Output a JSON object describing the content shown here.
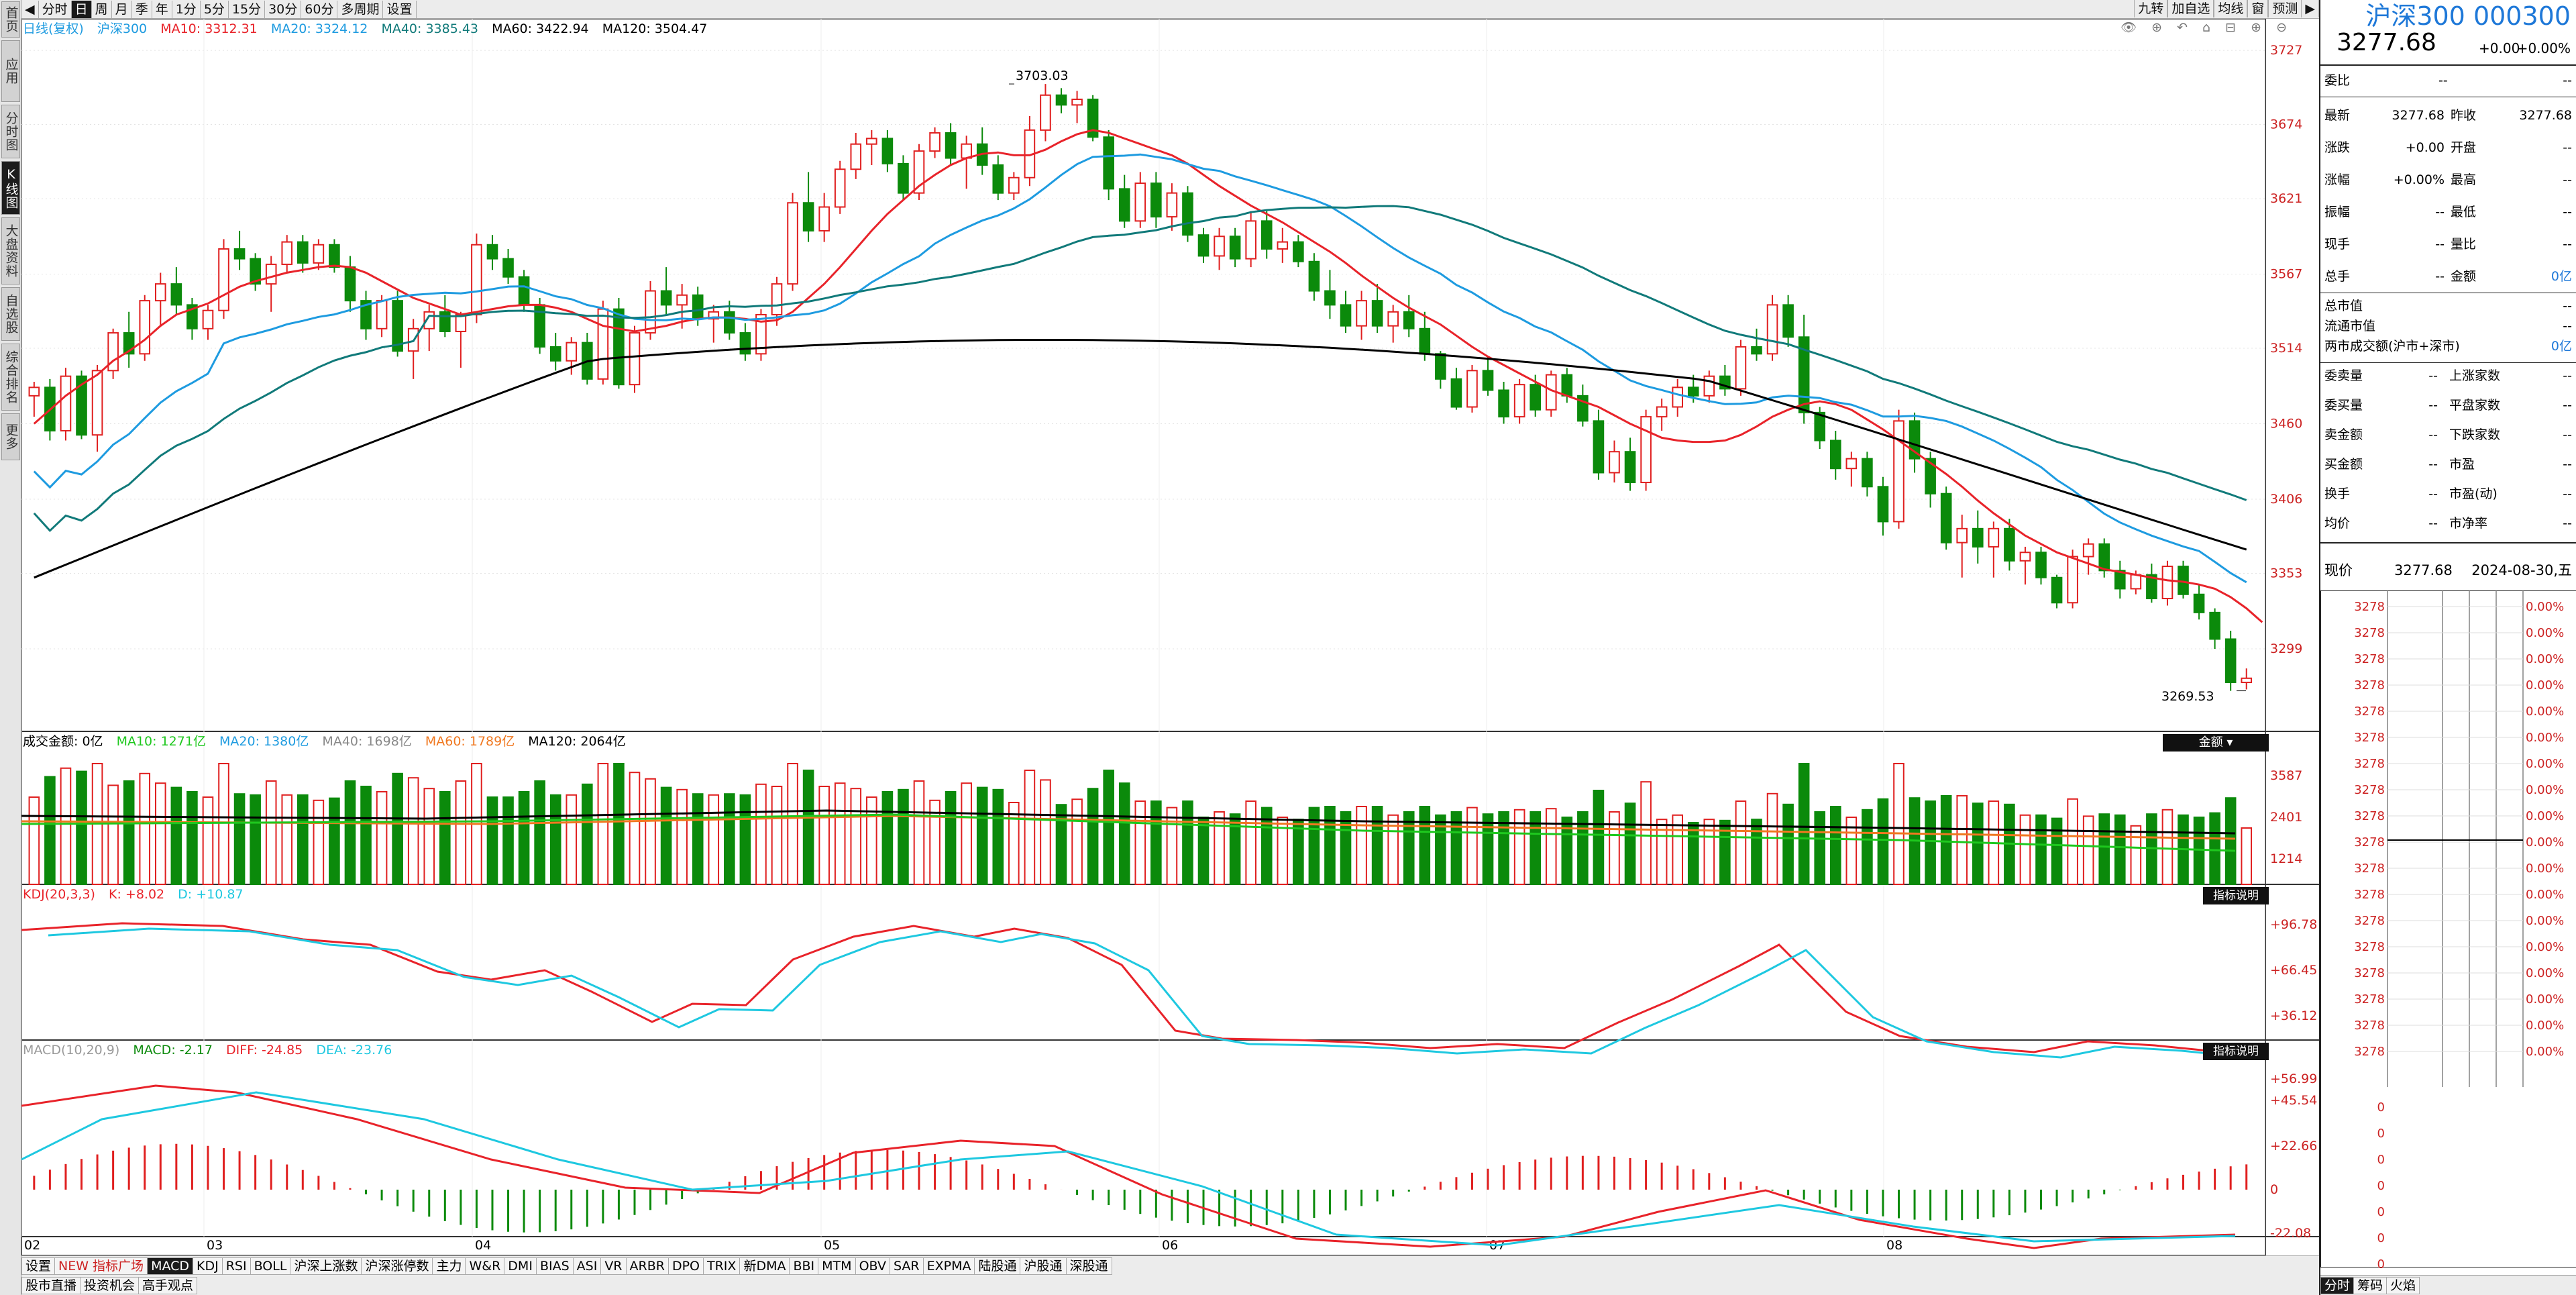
{
  "left_rail": [
    {
      "label": "首页",
      "active": false
    },
    {
      "label": "应用",
      "active": false
    },
    {
      "label": "分时图",
      "active": false
    },
    {
      "label": "K线图",
      "active": true
    },
    {
      "label": "大盘资料",
      "active": false
    },
    {
      "label": "自选股",
      "active": false
    },
    {
      "label": "综合排名",
      "active": false
    },
    {
      "label": "更多",
      "active": false
    }
  ],
  "toolbar": {
    "items": [
      "分时",
      "日",
      "周",
      "月",
      "季",
      "年",
      "1分",
      "5分",
      "15分",
      "30分",
      "60分",
      "多周期",
      "设置"
    ],
    "active": "日",
    "right_items": [
      "九转",
      "加自选",
      "均线",
      "窗",
      "预测"
    ]
  },
  "main_legend": {
    "label": "日线(复权)",
    "name": "沪深300",
    "ma10": "MA10: 3312.31",
    "ma20": "MA20: 3324.12",
    "ma40": "MA40: 3385.43",
    "ma60": "MA60: 3422.94",
    "ma120": "MA120: 3504.47"
  },
  "price_axis": [
    "3727",
    "3674",
    "3621",
    "3567",
    "3514",
    "3460",
    "3406",
    "3353",
    "3299"
  ],
  "annotations": {
    "high": "3703.03",
    "low": "3269.53"
  },
  "volume_legend": {
    "label": "成交金额: 0亿",
    "ma10": "MA10: 1271亿",
    "ma20": "MA20: 1380亿",
    "ma40": "MA40: 1698亿",
    "ma60": "MA60: 1789亿",
    "ma120": "MA120: 2064亿",
    "button": "金额"
  },
  "volume_axis": [
    "3587",
    "2401",
    "1214"
  ],
  "kdj_legend": {
    "label": "KDJ(20,3,3)",
    "k": "K: +8.02",
    "d": "D: +10.87",
    "button": "指标说明"
  },
  "kdj_axis": [
    "+96.78",
    "+66.45",
    "+36.12"
  ],
  "macd_legend": {
    "label": "MACD(10,20,9)",
    "macd": "MACD: -2.17",
    "diff": "DIFF: -24.85",
    "dea": "DEA: -23.76",
    "button": "指标说明"
  },
  "macd_axis": [
    "+56.99",
    "+45.54",
    "+22.66",
    "0",
    "-22.08"
  ],
  "date_axis": [
    "02",
    "03",
    "04",
    "05",
    "06",
    "07",
    "08"
  ],
  "bottom_tabs": [
    "设置",
    "NEW 指标广场",
    "MACD",
    "KDJ",
    "RSI",
    "BOLL",
    "沪深上涨数",
    "沪深涨停数",
    "主力",
    "W&R",
    "DMI",
    "BIAS",
    "ASI",
    "VR",
    "ARBR",
    "DPO",
    "TRIX",
    "新DMA",
    "BBI",
    "MTM",
    "OBV",
    "SAR",
    "EXPMA",
    "陆股通",
    "沪股通",
    "深股通"
  ],
  "bottom_tabs_active": "MACD",
  "bottom_tabs2": [
    "股市直播",
    "投资机会",
    "高手观点"
  ],
  "right_panel": {
    "title": "沪深300 000300",
    "price": "3277.68",
    "change": "+0.00",
    "change_pct": "+0.00%",
    "weibi_label": "委比",
    "weibi_val": "--",
    "weibi_val2": "--",
    "stats": [
      {
        "l1": "最新",
        "v1": "3277.68",
        "l2": "昨收",
        "v2": "3277.68"
      },
      {
        "l1": "涨跌",
        "v1": "+0.00",
        "l2": "开盘",
        "v2": "--"
      },
      {
        "l1": "涨幅",
        "v1": "+0.00%",
        "l2": "最高",
        "v2": "--"
      },
      {
        "l1": "振幅",
        "v1": "--",
        "l2": "最低",
        "v2": "--"
      },
      {
        "l1": "现手",
        "v1": "--",
        "l2": "量比",
        "v2": "--"
      },
      {
        "l1": "总手",
        "v1": "--",
        "l2": "金额",
        "v2": "0亿"
      }
    ],
    "caps": [
      {
        "l": "总市值",
        "v": "--"
      },
      {
        "l": "流通市值",
        "v": "--"
      },
      {
        "l": "两市成交额(沪市+深市)",
        "v": "0亿"
      }
    ],
    "orders": [
      {
        "l1": "委卖量",
        "v1": "--",
        "l2": "上涨家数",
        "v2": "--"
      },
      {
        "l1": "委买量",
        "v1": "--",
        "l2": "平盘家数",
        "v2": "--"
      },
      {
        "l1": "卖金额",
        "v1": "--",
        "l2": "下跌家数",
        "v2": "--"
      },
      {
        "l1": "买金额",
        "v1": "--",
        "l2": "市盈",
        "v2": "--"
      },
      {
        "l1": "换手",
        "v1": "--",
        "l2": "市盈(动)",
        "v2": "--"
      },
      {
        "l1": "均价",
        "v1": "--",
        "l2": "市净率",
        "v2": "--"
      }
    ],
    "now_label": "现价",
    "now_price": "3277.68",
    "now_date": "2024-08-30,五",
    "mini_prices": [
      "3278",
      "3278",
      "3278",
      "3278",
      "3278",
      "3278",
      "3278",
      "3278",
      "3278",
      "3278",
      "3278",
      "3278",
      "3278",
      "3278",
      "3278",
      "3278",
      "3278",
      "3278"
    ],
    "mini_pcts": [
      "0.00%",
      "0.00%",
      "0.00%",
      "0.00%",
      "0.00%",
      "0.00%",
      "0.00%",
      "0.00%",
      "0.00%",
      "0.00%",
      "0.00%",
      "0.00%",
      "0.00%",
      "0.00%",
      "0.00%",
      "0.00%",
      "0.00%",
      "0.00%"
    ],
    "mini_lower": [
      "0",
      "0",
      "0",
      "0",
      "0",
      "0",
      "0",
      "0"
    ],
    "bottom_tabs": [
      "分时",
      "筹码",
      "火焰"
    ]
  },
  "colors": {
    "up": "#e01f1f",
    "down": "#0b8a0b",
    "ma10": "#e8232a",
    "ma20": "#1e9be0",
    "ma40": "#117a7a",
    "ma120": "#000000",
    "vol_ma60": "#f07820",
    "k": "#e8232a",
    "d": "#1ec8e0"
  },
  "chart_data": {
    "type": "candlestick",
    "date_labels": [
      "02",
      "03",
      "04",
      "05",
      "06",
      "07",
      "08"
    ],
    "y_range": [
      3240,
      3740
    ],
    "candles": [
      [
        3480,
        3490,
        3465,
        3486
      ],
      [
        3486,
        3492,
        3448,
        3455
      ],
      [
        3455,
        3500,
        3448,
        3494
      ],
      [
        3494,
        3498,
        3449,
        3452
      ],
      [
        3452,
        3502,
        3440,
        3498
      ],
      [
        3498,
        3528,
        3492,
        3525
      ],
      [
        3525,
        3540,
        3500,
        3510
      ],
      [
        3510,
        3552,
        3505,
        3548
      ],
      [
        3548,
        3568,
        3530,
        3560
      ],
      [
        3560,
        3572,
        3538,
        3545
      ],
      [
        3545,
        3550,
        3520,
        3528
      ],
      [
        3528,
        3545,
        3520,
        3541
      ],
      [
        3541,
        3592,
        3535,
        3585
      ],
      [
        3585,
        3598,
        3570,
        3578
      ],
      [
        3578,
        3582,
        3555,
        3560
      ],
      [
        3560,
        3580,
        3540,
        3574
      ],
      [
        3574,
        3595,
        3568,
        3590
      ],
      [
        3590,
        3595,
        3568,
        3575
      ],
      [
        3575,
        3592,
        3570,
        3588
      ],
      [
        3588,
        3592,
        3568,
        3572
      ],
      [
        3572,
        3580,
        3540,
        3548
      ],
      [
        3548,
        3555,
        3520,
        3528
      ],
      [
        3528,
        3552,
        3522,
        3548
      ],
      [
        3548,
        3555,
        3508,
        3512
      ],
      [
        3512,
        3535,
        3492,
        3528
      ],
      [
        3528,
        3545,
        3512,
        3540
      ],
      [
        3540,
        3552,
        3522,
        3526
      ],
      [
        3526,
        3540,
        3500,
        3538
      ],
      [
        3538,
        3596,
        3532,
        3588
      ],
      [
        3588,
        3595,
        3570,
        3578
      ],
      [
        3578,
        3585,
        3560,
        3565
      ],
      [
        3565,
        3570,
        3540,
        3545
      ],
      [
        3545,
        3550,
        3510,
        3515
      ],
      [
        3515,
        3525,
        3498,
        3505
      ],
      [
        3505,
        3522,
        3495,
        3518
      ],
      [
        3518,
        3525,
        3488,
        3492
      ],
      [
        3492,
        3548,
        3488,
        3542
      ],
      [
        3542,
        3550,
        3485,
        3488
      ],
      [
        3488,
        3530,
        3482,
        3525
      ],
      [
        3525,
        3562,
        3520,
        3555
      ],
      [
        3555,
        3572,
        3538,
        3545
      ],
      [
        3545,
        3560,
        3528,
        3552
      ],
      [
        3552,
        3558,
        3530,
        3535
      ],
      [
        3535,
        3545,
        3518,
        3540
      ],
      [
        3540,
        3548,
        3520,
        3525
      ],
      [
        3525,
        3532,
        3505,
        3510
      ],
      [
        3510,
        3542,
        3505,
        3538
      ],
      [
        3538,
        3565,
        3530,
        3560
      ],
      [
        3560,
        3625,
        3555,
        3618
      ],
      [
        3618,
        3640,
        3590,
        3598
      ],
      [
        3598,
        3625,
        3590,
        3615
      ],
      [
        3615,
        3648,
        3610,
        3642
      ],
      [
        3642,
        3668,
        3635,
        3660
      ],
      [
        3660,
        3670,
        3645,
        3664
      ],
      [
        3664,
        3670,
        3640,
        3646
      ],
      [
        3646,
        3652,
        3620,
        3625
      ],
      [
        3625,
        3660,
        3620,
        3655
      ],
      [
        3655,
        3672,
        3650,
        3668
      ],
      [
        3668,
        3675,
        3645,
        3650
      ],
      [
        3650,
        3666,
        3628,
        3660
      ],
      [
        3660,
        3672,
        3638,
        3645
      ],
      [
        3645,
        3652,
        3620,
        3625
      ],
      [
        3625,
        3640,
        3620,
        3636
      ],
      [
        3636,
        3680,
        3630,
        3670
      ],
      [
        3670,
        3703,
        3662,
        3695
      ],
      [
        3695,
        3700,
        3682,
        3688
      ],
      [
        3688,
        3698,
        3675,
        3692
      ],
      [
        3692,
        3695,
        3662,
        3665
      ],
      [
        3665,
        3670,
        3620,
        3628
      ],
      [
        3628,
        3638,
        3600,
        3605
      ],
      [
        3605,
        3640,
        3600,
        3632
      ],
      [
        3632,
        3640,
        3600,
        3608
      ],
      [
        3608,
        3632,
        3598,
        3625
      ],
      [
        3625,
        3630,
        3590,
        3595
      ],
      [
        3595,
        3600,
        3575,
        3580
      ],
      [
        3580,
        3600,
        3570,
        3594
      ],
      [
        3594,
        3600,
        3572,
        3578
      ],
      [
        3578,
        3612,
        3572,
        3605
      ],
      [
        3605,
        3612,
        3578,
        3585
      ],
      [
        3585,
        3600,
        3575,
        3590
      ],
      [
        3590,
        3595,
        3572,
        3576
      ],
      [
        3576,
        3582,
        3548,
        3555
      ],
      [
        3555,
        3570,
        3535,
        3545
      ],
      [
        3545,
        3555,
        3525,
        3530
      ],
      [
        3530,
        3555,
        3520,
        3548
      ],
      [
        3548,
        3560,
        3525,
        3530
      ],
      [
        3530,
        3545,
        3518,
        3540
      ],
      [
        3540,
        3552,
        3522,
        3528
      ],
      [
        3528,
        3540,
        3505,
        3510
      ],
      [
        3510,
        3512,
        3485,
        3492
      ],
      [
        3492,
        3500,
        3470,
        3472
      ],
      [
        3472,
        3502,
        3468,
        3498
      ],
      [
        3498,
        3508,
        3480,
        3484
      ],
      [
        3484,
        3490,
        3460,
        3465
      ],
      [
        3465,
        3492,
        3460,
        3488
      ],
      [
        3488,
        3495,
        3465,
        3470
      ],
      [
        3470,
        3498,
        3465,
        3495
      ],
      [
        3495,
        3500,
        3475,
        3480
      ],
      [
        3480,
        3488,
        3458,
        3462
      ],
      [
        3462,
        3470,
        3420,
        3425
      ],
      [
        3425,
        3448,
        3418,
        3440
      ],
      [
        3440,
        3450,
        3412,
        3418
      ],
      [
        3418,
        3470,
        3412,
        3465
      ],
      [
        3465,
        3478,
        3455,
        3472
      ],
      [
        3472,
        3492,
        3465,
        3486
      ],
      [
        3486,
        3495,
        3475,
        3480
      ],
      [
        3480,
        3498,
        3475,
        3494
      ],
      [
        3494,
        3502,
        3480,
        3485
      ],
      [
        3485,
        3520,
        3480,
        3515
      ],
      [
        3515,
        3528,
        3505,
        3510
      ],
      [
        3510,
        3552,
        3505,
        3545
      ],
      [
        3545,
        3552,
        3515,
        3522
      ],
      [
        3522,
        3538,
        3460,
        3468
      ],
      [
        3468,
        3472,
        3442,
        3448
      ],
      [
        3448,
        3455,
        3420,
        3428
      ],
      [
        3428,
        3440,
        3415,
        3435
      ],
      [
        3435,
        3440,
        3408,
        3415
      ],
      [
        3415,
        3422,
        3380,
        3390
      ],
      [
        3390,
        3470,
        3385,
        3462
      ],
      [
        3462,
        3468,
        3425,
        3435
      ],
      [
        3435,
        3440,
        3400,
        3410
      ],
      [
        3410,
        3415,
        3370,
        3375
      ],
      [
        3375,
        3395,
        3350,
        3385
      ],
      [
        3385,
        3398,
        3360,
        3372
      ],
      [
        3372,
        3390,
        3350,
        3385
      ],
      [
        3385,
        3392,
        3355,
        3362
      ],
      [
        3362,
        3372,
        3345,
        3368
      ],
      [
        3368,
        3372,
        3345,
        3350
      ],
      [
        3350,
        3352,
        3328,
        3332
      ],
      [
        3332,
        3370,
        3328,
        3365
      ],
      [
        3365,
        3378,
        3352,
        3374
      ],
      [
        3374,
        3378,
        3350,
        3355
      ],
      [
        3355,
        3362,
        3335,
        3342
      ],
      [
        3342,
        3355,
        3338,
        3352
      ],
      [
        3352,
        3360,
        3332,
        3335
      ],
      [
        3335,
        3362,
        3330,
        3358
      ],
      [
        3358,
        3362,
        3335,
        3338
      ],
      [
        3338,
        3345,
        3320,
        3325
      ],
      [
        3325,
        3328,
        3299,
        3306
      ],
      [
        3306,
        3312,
        3269,
        3275
      ],
      [
        3275,
        3285,
        3270,
        3278
      ]
    ],
    "ma10": [
      3460,
      3470,
      3480,
      3488,
      3495,
      3505,
      3512,
      3520,
      3530,
      3538,
      3542,
      3546,
      3552,
      3558,
      3562,
      3565,
      3568,
      3570,
      3572,
      3573,
      3572,
      3568,
      3562,
      3556,
      3550,
      3546,
      3542,
      3538,
      3540,
      3542,
      3544,
      3545,
      3545,
      3543,
      3540,
      3535,
      3530,
      3528,
      3526,
      3528,
      3530,
      3533,
      3535,
      3536,
      3536,
      3535,
      3533,
      3534,
      3540,
      3550,
      3560,
      3572,
      3585,
      3598,
      3610,
      3620,
      3630,
      3638,
      3645,
      3650,
      3653,
      3654,
      3652,
      3652,
      3656,
      3662,
      3667,
      3670,
      3668,
      3664,
      3660,
      3656,
      3652,
      3646,
      3638,
      3630,
      3623,
      3616,
      3610,
      3604,
      3597,
      3590,
      3583,
      3575,
      3566,
      3558,
      3550,
      3543,
      3537,
      3531,
      3523,
      3515,
      3508,
      3502,
      3496,
      3490,
      3484,
      3480,
      3476,
      3472,
      3466,
      3460,
      3455,
      3450,
      3448,
      3447,
      3447,
      3448,
      3452,
      3458,
      3465,
      3470,
      3474,
      3476,
      3474,
      3470,
      3463,
      3456,
      3448,
      3440,
      3432,
      3424,
      3415,
      3405,
      3396,
      3388,
      3380,
      3374,
      3368,
      3364,
      3360,
      3356,
      3354,
      3352,
      3350,
      3348,
      3347,
      3345,
      3342,
      3336,
      3328,
      3318
    ]
  }
}
